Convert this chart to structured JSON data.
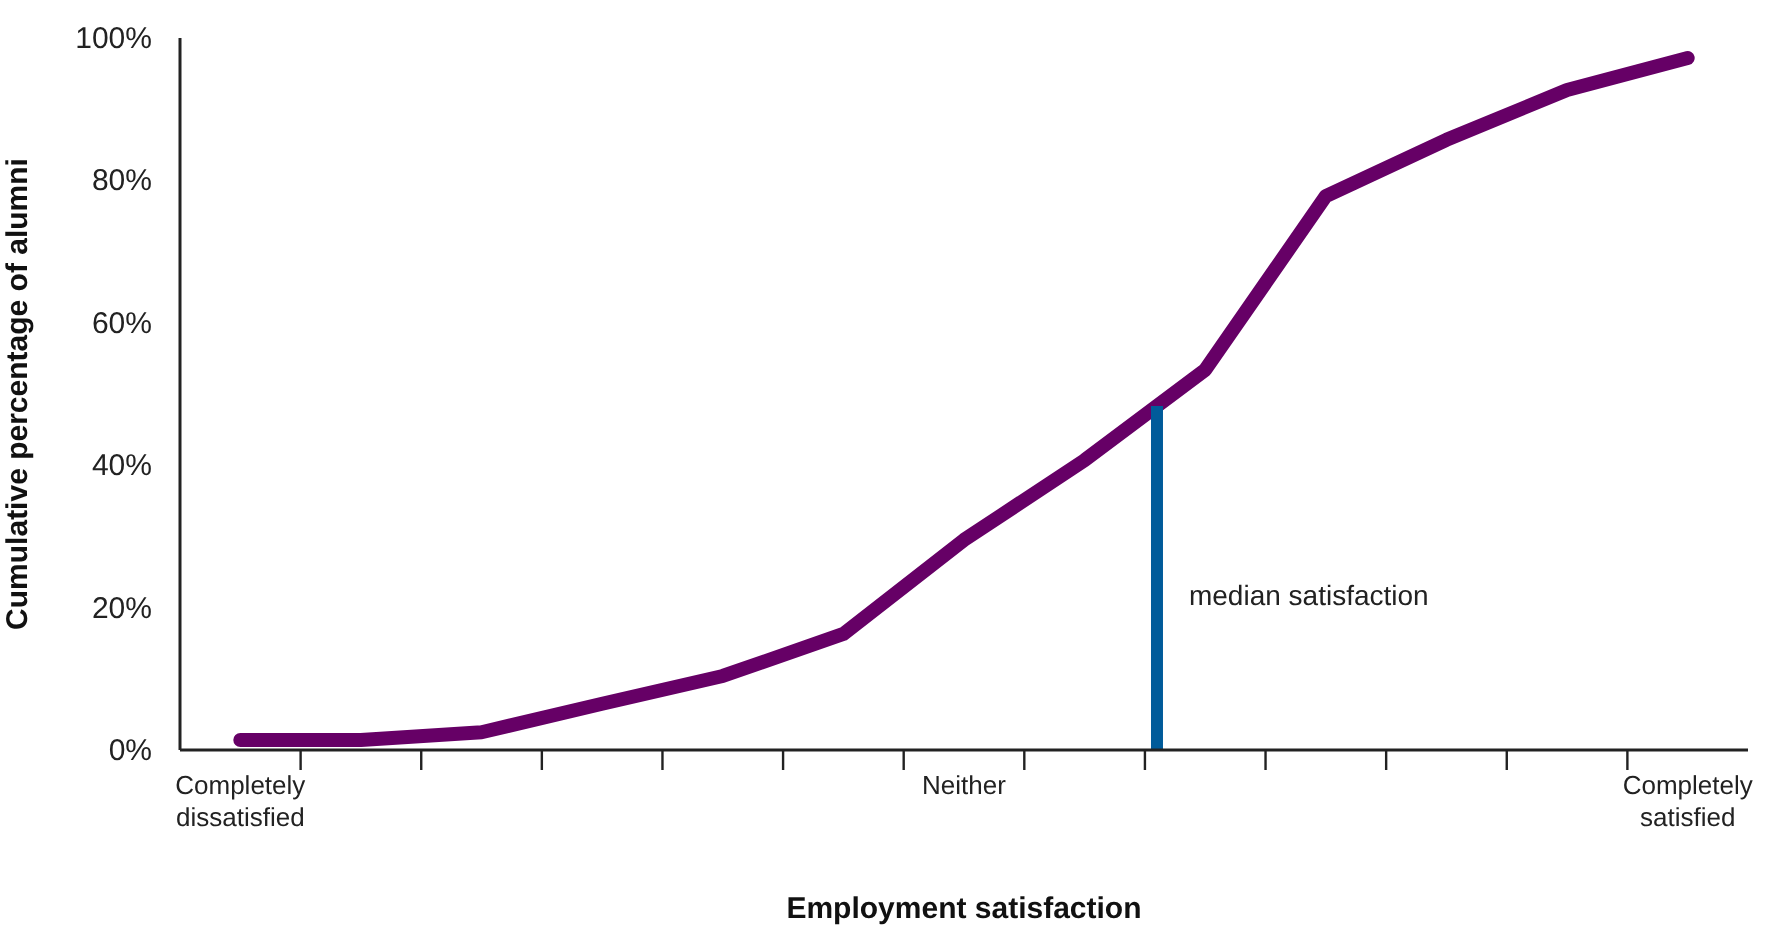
{
  "chart_data": {
    "type": "line",
    "xlabel": "Employment satisfaction",
    "ylabel": "Cumulative percentage of alumni",
    "categories": [
      "Completely dissatisfied",
      null,
      null,
      null,
      null,
      null,
      "Neither",
      null,
      null,
      null,
      null,
      null,
      "Completely satisfied"
    ],
    "ylim": [
      0,
      100
    ],
    "yticks": [
      {
        "value": 0,
        "label": "0%"
      },
      {
        "value": 20,
        "label": "20%"
      },
      {
        "value": 40,
        "label": "40%"
      },
      {
        "value": 60,
        "label": "60%"
      },
      {
        "value": 80,
        "label": "80%"
      },
      {
        "value": 100,
        "label": "100%"
      }
    ],
    "series": [
      {
        "color": "#660066",
        "values": [
          1.4,
          1.4,
          2.5,
          6.5,
          10.4,
          16.3,
          29.5,
          40.7,
          53.4,
          77.8,
          85.7,
          92.7,
          97.2
        ]
      }
    ],
    "annotations": [
      "median satisfaction"
    ],
    "grid": false,
    "marker": "none",
    "line_style": "solid"
  }
}
